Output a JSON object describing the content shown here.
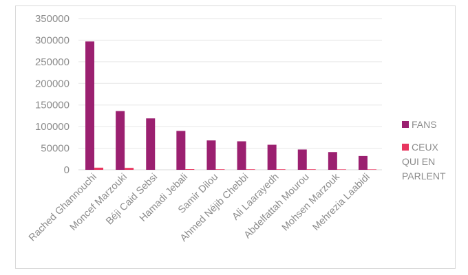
{
  "chart_data": {
    "type": "bar",
    "categories": [
      "Rached Ghannouchi",
      "Moncef Marzouki",
      "Béji Caid Sebsi",
      "Hamadi Jebali",
      "Samir Dilou",
      "Ahmed Néjib Chebbi",
      "Ali Laarayedh",
      "Abdelfattah Mourou",
      "Mohsen Marzouk",
      "Mehrezia Laabidi"
    ],
    "series": [
      {
        "name": "FANS",
        "color": "#9b2070",
        "values": [
          297000,
          136000,
          119000,
          90000,
          68000,
          66000,
          58000,
          47000,
          41000,
          32000
        ]
      },
      {
        "name": "CEUX QUI EN PARLENT",
        "color": "#e8365f",
        "values": [
          5000,
          4500,
          0,
          1500,
          1200,
          1200,
          1200,
          1200,
          1000,
          1000
        ]
      }
    ],
    "yticks": [
      0,
      50000,
      100000,
      150000,
      200000,
      250000,
      300000,
      350000
    ],
    "ylim": [
      0,
      350000
    ],
    "grid": true,
    "legend_position": "right",
    "title": "",
    "xlabel": "",
    "ylabel": ""
  }
}
